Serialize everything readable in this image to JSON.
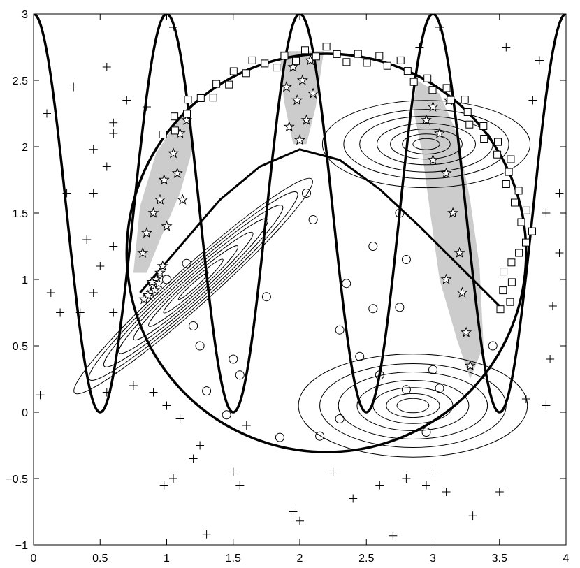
{
  "chart_data": {
    "type": "scatter",
    "xlim": [
      0,
      4
    ],
    "ylim": [
      -1,
      3
    ],
    "x_ticks": [
      0,
      0.5,
      1,
      1.5,
      2,
      2.5,
      3,
      3.5,
      4
    ],
    "x_tick_labels": [
      "0",
      "0.5",
      "1",
      "1.5",
      "2",
      "2.5",
      "3",
      "3.5",
      "4"
    ],
    "y_ticks": [
      -1,
      -0.5,
      0,
      0.5,
      1,
      1.5,
      2,
      2.5,
      3
    ],
    "y_tick_labels": [
      "−1",
      "−0.5",
      "0",
      "0.5",
      "1",
      "1.5",
      "2",
      "2.5",
      "3"
    ],
    "grid": false,
    "colors": {
      "axes": "#000000",
      "region_fill": "#cccccc",
      "background": "#ffffff"
    },
    "curves": {
      "sinusoid": {
        "function": "y = 1.5 + 1.5*cos(2*pi*x)",
        "x_range": [
          0,
          4
        ]
      },
      "large_circle": {
        "center": [
          2.2,
          1.2
        ],
        "radius": 1.5
      },
      "inner_arch": {
        "x": [
          0.8,
          1.1,
          1.4,
          1.7,
          2.0,
          2.3,
          2.6,
          2.9,
          3.2,
          3.5
        ],
        "y": [
          0.9,
          1.25,
          1.6,
          1.85,
          1.98,
          1.9,
          1.68,
          1.4,
          1.1,
          0.8
        ]
      }
    },
    "gaussian_contours": [
      {
        "name": "ellipse-lower-right",
        "center": [
          2.85,
          0.05
        ],
        "rx": [
          0.12,
          0.2,
          0.3,
          0.42,
          0.56,
          0.7,
          0.86
        ],
        "ry_ratio": 0.45,
        "angle_deg": 0
      },
      {
        "name": "ellipse-upper-right",
        "center": [
          2.95,
          2.02
        ],
        "rx": [
          0.1,
          0.18,
          0.27,
          0.37,
          0.5,
          0.62,
          0.78
        ],
        "ry_ratio": 0.42,
        "angle_deg": 0
      },
      {
        "name": "ellipse-diagonal",
        "center": [
          1.2,
          0.95
        ],
        "rx": [
          0.15,
          0.3,
          0.45,
          0.6,
          0.75,
          0.9,
          1.05,
          1.2
        ],
        "ry_ratio": 0.12,
        "angle_deg": 42
      }
    ],
    "shaded_regions": [
      {
        "name": "region-left",
        "points": [
          [
            0.75,
            1.05
          ],
          [
            0.8,
            1.55
          ],
          [
            0.92,
            1.95
          ],
          [
            1.05,
            2.15
          ],
          [
            1.18,
            2.3
          ],
          [
            1.2,
            2.0
          ],
          [
            1.1,
            1.65
          ],
          [
            0.95,
            1.3
          ],
          [
            0.85,
            1.05
          ]
        ]
      },
      {
        "name": "region-middle",
        "points": [
          [
            1.85,
            2.72
          ],
          [
            2.18,
            2.72
          ],
          [
            2.12,
            2.3
          ],
          [
            2.05,
            2.02
          ],
          [
            1.95,
            2.02
          ],
          [
            1.88,
            2.35
          ]
        ]
      },
      {
        "name": "region-right",
        "points": [
          [
            2.88,
            2.5
          ],
          [
            3.05,
            2.4
          ],
          [
            3.18,
            2.1
          ],
          [
            3.28,
            1.6
          ],
          [
            3.35,
            1.1
          ],
          [
            3.38,
            0.5
          ],
          [
            3.28,
            0.25
          ],
          [
            3.18,
            0.55
          ],
          [
            3.05,
            1.0
          ],
          [
            2.98,
            1.5
          ],
          [
            2.92,
            1.95
          ],
          [
            2.85,
            2.3
          ]
        ]
      }
    ],
    "series": [
      {
        "marker": "star",
        "clusters": [
          {
            "points": [
              [
                0.88,
                0.9
              ],
              [
                0.9,
                0.95
              ],
              [
                0.92,
                1.0
              ],
              [
                0.94,
                0.97
              ],
              [
                0.86,
                0.88
              ],
              [
                0.95,
                1.05
              ],
              [
                0.83,
                0.85
              ],
              [
                0.97,
                1.1
              ],
              [
                0.91,
                0.92
              ],
              [
                0.89,
                0.98
              ]
            ]
          },
          {
            "points": [
              [
                0.9,
                1.5
              ],
              [
                0.98,
                1.75
              ],
              [
                1.05,
                1.95
              ],
              [
                0.85,
                1.35
              ],
              [
                1.1,
                2.1
              ],
              [
                0.95,
                1.6
              ],
              [
                1.0,
                1.4
              ],
              [
                1.08,
                1.8
              ],
              [
                1.15,
                2.2
              ],
              [
                0.82,
                1.2
              ],
              [
                1.12,
                1.6
              ]
            ]
          },
          {
            "points": [
              [
                1.95,
                2.6
              ],
              [
                2.02,
                2.5
              ],
              [
                1.98,
                2.35
              ],
              [
                2.05,
                2.2
              ],
              [
                1.92,
                2.15
              ],
              [
                2.1,
                2.4
              ],
              [
                2.0,
                2.05
              ],
              [
                2.08,
                2.65
              ],
              [
                1.9,
                2.45
              ]
            ]
          },
          {
            "points": [
              [
                3.0,
                2.3
              ],
              [
                3.05,
                2.1
              ],
              [
                3.1,
                1.8
              ],
              [
                3.15,
                1.5
              ],
              [
                3.2,
                1.2
              ],
              [
                3.22,
                0.9
              ],
              [
                3.25,
                0.6
              ],
              [
                3.28,
                0.35
              ],
              [
                3.1,
                1.0
              ],
              [
                3.0,
                1.9
              ],
              [
                2.95,
                2.2
              ],
              [
                3.12,
                2.35
              ]
            ]
          }
        ]
      },
      {
        "marker": "circle",
        "points": [
          [
            1.15,
            1.12
          ],
          [
            1.0,
            1.0
          ],
          [
            2.35,
            0.97
          ],
          [
            2.55,
            0.78
          ],
          [
            2.75,
            0.79
          ],
          [
            2.3,
            0.62
          ],
          [
            3.45,
            0.5
          ],
          [
            2.45,
            0.42
          ],
          [
            2.6,
            0.28
          ],
          [
            3.0,
            0.32
          ],
          [
            3.05,
            0.18
          ],
          [
            2.8,
            0.17
          ],
          [
            1.55,
            0.28
          ],
          [
            1.3,
            0.16
          ],
          [
            1.45,
            -0.02
          ],
          [
            1.85,
            -0.19
          ],
          [
            2.15,
            -0.18
          ],
          [
            1.75,
            0.87
          ],
          [
            2.05,
            1.65
          ],
          [
            2.1,
            1.45
          ],
          [
            2.55,
            1.25
          ],
          [
            2.8,
            1.15
          ],
          [
            2.75,
            1.5
          ],
          [
            1.2,
            0.65
          ],
          [
            1.25,
            0.5
          ],
          [
            1.5,
            0.4
          ],
          [
            2.95,
            -0.15
          ],
          [
            2.3,
            -0.05
          ]
        ]
      },
      {
        "marker": "square",
        "arc": {
          "center": [
            2.2,
            1.2
          ],
          "radius": 1.5,
          "theta_deg": [
            -18,
            145
          ]
        }
      },
      {
        "marker": "plus",
        "points": [
          [
            0.1,
            2.25
          ],
          [
            0.45,
            1.98
          ],
          [
            0.55,
            1.85
          ],
          [
            0.6,
            2.1
          ],
          [
            0.45,
            1.65
          ],
          [
            0.25,
            1.65
          ],
          [
            0.4,
            1.3
          ],
          [
            0.6,
            1.25
          ],
          [
            0.5,
            1.1
          ],
          [
            0.45,
            0.9
          ],
          [
            0.35,
            0.75
          ],
          [
            0.13,
            0.9
          ],
          [
            0.2,
            0.75
          ],
          [
            0.6,
            0.75
          ],
          [
            0.65,
            0.65
          ],
          [
            0.6,
            0.3
          ],
          [
            0.55,
            0.15
          ],
          [
            0.05,
            0.13
          ],
          [
            0.75,
            0.2
          ],
          [
            0.9,
            0.15
          ],
          [
            1.0,
            0.05
          ],
          [
            1.1,
            -0.05
          ],
          [
            0.98,
            -0.55
          ],
          [
            1.05,
            -0.5
          ],
          [
            1.2,
            -0.35
          ],
          [
            1.25,
            -0.25
          ],
          [
            1.5,
            -0.45
          ],
          [
            1.55,
            -0.55
          ],
          [
            1.3,
            -0.92
          ],
          [
            1.6,
            -0.1
          ],
          [
            1.95,
            -0.75
          ],
          [
            2.0,
            -0.82
          ],
          [
            2.25,
            -0.45
          ],
          [
            2.4,
            -0.65
          ],
          [
            2.6,
            -0.55
          ],
          [
            2.7,
            -0.93
          ],
          [
            2.8,
            -0.5
          ],
          [
            2.95,
            -0.55
          ],
          [
            3.0,
            -0.45
          ],
          [
            3.1,
            -0.6
          ],
          [
            3.3,
            -0.78
          ],
          [
            3.5,
            -0.6
          ],
          [
            3.7,
            0.1
          ],
          [
            3.85,
            0.05
          ],
          [
            3.88,
            0.4
          ],
          [
            3.9,
            0.8
          ],
          [
            3.95,
            1.2
          ],
          [
            3.85,
            1.5
          ],
          [
            3.95,
            1.65
          ],
          [
            3.75,
            2.35
          ],
          [
            3.8,
            2.65
          ],
          [
            3.55,
            2.75
          ],
          [
            3.05,
            2.9
          ],
          [
            2.9,
            2.75
          ],
          [
            1.05,
            2.9
          ],
          [
            0.55,
            2.6
          ],
          [
            0.85,
            2.3
          ],
          [
            0.7,
            2.35
          ],
          [
            0.6,
            2.18
          ],
          [
            0.3,
            2.45
          ]
        ]
      }
    ]
  }
}
